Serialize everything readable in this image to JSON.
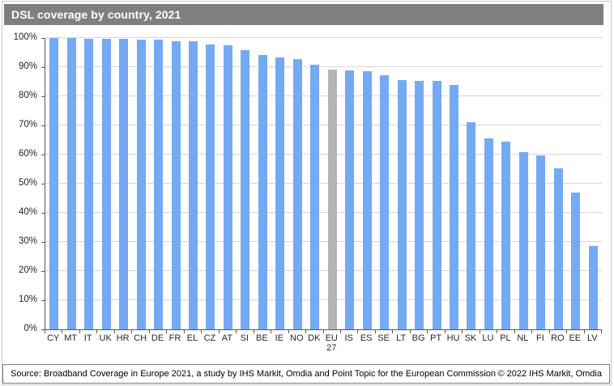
{
  "title_bar": {
    "title": "DSL coverage by country, 2021"
  },
  "footer": {
    "source": "Source: Broadband Coverage in Europe 2021, a study by IHS Markit, Omdia and Point Topic for the European Commission",
    "copyright": "© 2022 IHS Markit, Omdia"
  },
  "colors": {
    "bar": "#74a9f4",
    "highlight_bar": "#b3b3b9",
    "gridline": "#d6d6d6",
    "axis": "#595959",
    "title_bg": "#7f7f7f",
    "title_text": "#ffffff"
  },
  "chart_data": {
    "type": "bar",
    "title": "DSL coverage by country, 2021",
    "xlabel": "",
    "ylabel": "",
    "ylim": [
      0,
      100
    ],
    "yticks": [
      "0%",
      "10%",
      "20%",
      "30%",
      "40%",
      "50%",
      "60%",
      "70%",
      "80%",
      "90%",
      "100%"
    ],
    "grid": true,
    "legend": false,
    "highlight_category": "EU 27",
    "categories": [
      "CY",
      "MT",
      "IT",
      "UK",
      "HR",
      "CH",
      "DE",
      "FR",
      "EL",
      "CZ",
      "AT",
      "SI",
      "BE",
      "IE",
      "NO",
      "DK",
      "EU 27",
      "IS",
      "ES",
      "SE",
      "LT",
      "BG",
      "PT",
      "HU",
      "SK",
      "LU",
      "PL",
      "NL",
      "FI",
      "RO",
      "EE",
      "LV"
    ],
    "values": [
      100,
      100,
      99.7,
      99.7,
      99.6,
      99.5,
      99.4,
      99.0,
      98.9,
      97.8,
      97.4,
      95.8,
      94.2,
      93.3,
      92.7,
      90.8,
      89.2,
      88.9,
      88.6,
      87.2,
      85.5,
      85.4,
      85.2,
      84.0,
      71.2,
      65.5,
      64.4,
      60.8,
      59.8,
      55.2,
      47.0,
      28.7
    ]
  }
}
